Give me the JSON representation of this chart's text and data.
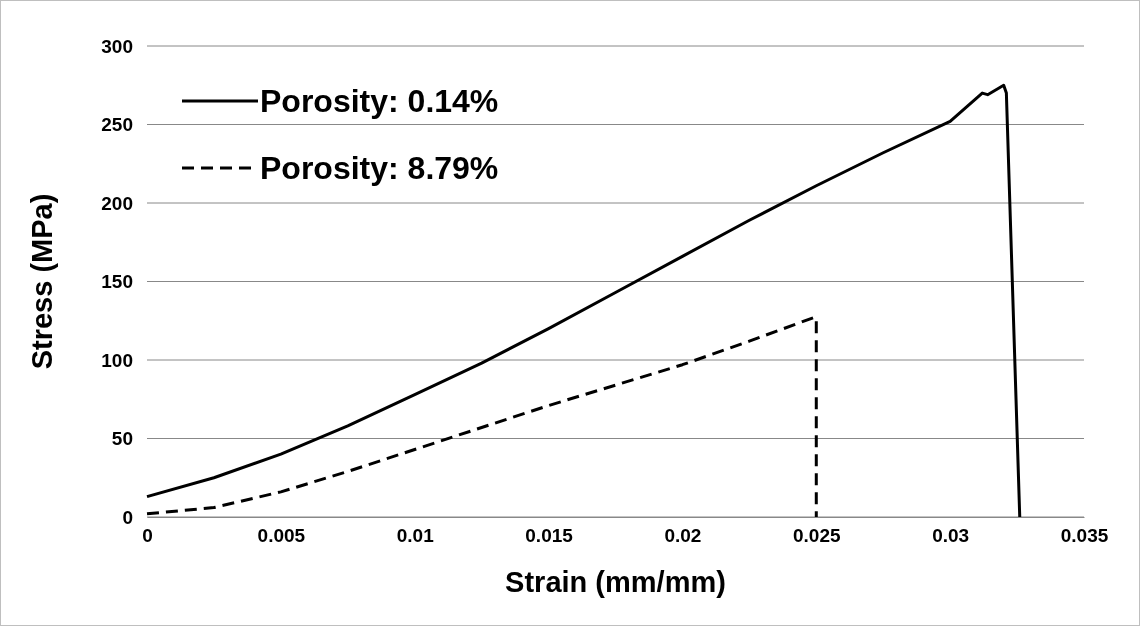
{
  "chart_data": {
    "type": "line",
    "xlabel": "Strain (mm/mm)",
    "ylabel": "Stress (MPa)",
    "xlim": [
      0,
      0.035
    ],
    "xticks": [
      0,
      0.005,
      0.01,
      0.015,
      0.02,
      0.025,
      0.03,
      0.035
    ],
    "ylim": [
      0,
      300
    ],
    "yticks": [
      0,
      50,
      100,
      150,
      200,
      250,
      300
    ],
    "grid": "y",
    "legend": "top left",
    "marker": "none",
    "series": [
      {
        "name": "Porosity: 0.14%",
        "color": "#000000",
        "line_style": "solid",
        "x": [
          0,
          0.0025,
          0.005,
          0.0075,
          0.01,
          0.0125,
          0.015,
          0.0175,
          0.02,
          0.0225,
          0.025,
          0.0275,
          0.03,
          0.0312,
          0.0314,
          0.032,
          0.0321,
          0.0326
        ],
        "values": [
          13,
          25,
          40,
          58,
          78,
          98,
          120,
          143,
          166,
          189,
          211,
          232,
          252,
          270,
          269,
          275,
          270,
          0
        ]
      },
      {
        "name": "Porosity: 8.79%",
        "color": "#000000",
        "line_style": "dashed",
        "x": [
          0,
          0.0025,
          0.005,
          0.0075,
          0.01,
          0.0125,
          0.015,
          0.0175,
          0.02,
          0.0225,
          0.0249,
          0.025,
          0.025
        ],
        "values": [
          2,
          6,
          16,
          29,
          43,
          57,
          71,
          84,
          97,
          112,
          127,
          127,
          0
        ]
      }
    ]
  }
}
